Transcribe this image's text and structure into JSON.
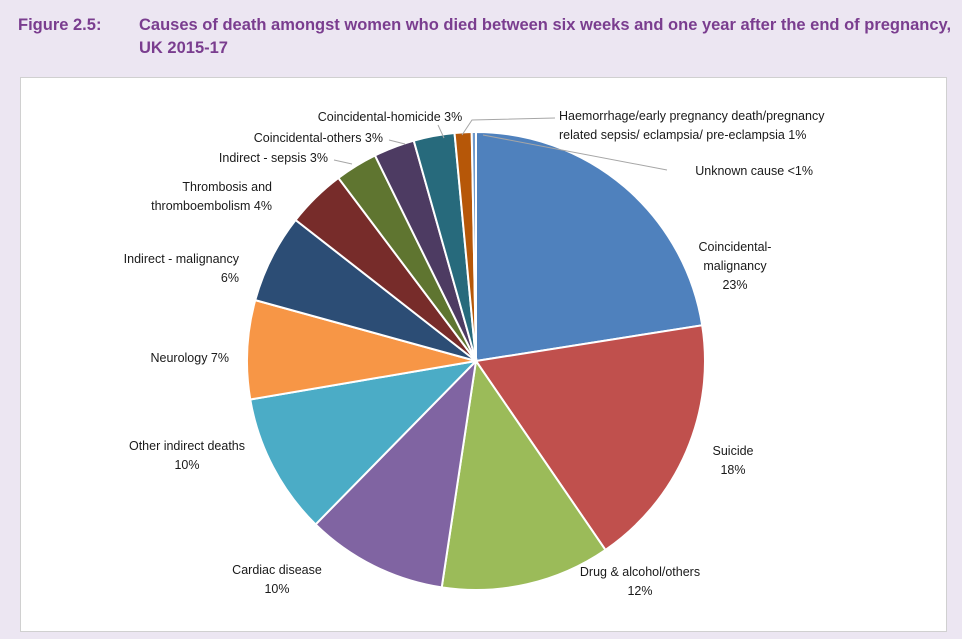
{
  "figure": {
    "number": "Figure 2.5:",
    "title": "Causes of death amongst women who died between six weeks and one year after the end of pregnancy, UK 2015-17"
  },
  "chart_data": {
    "type": "pie",
    "title": "Causes of death amongst women who died between six weeks and one year after the end of pregnancy, UK 2015-17",
    "unit": "%",
    "start": "12 o'clock, clockwise",
    "slices": [
      {
        "name": "Coincidental-malignancy",
        "value": 22.6,
        "label_lines": [
          "Coincidental-",
          "malignancy",
          "23%"
        ],
        "color": "#4f81bd"
      },
      {
        "name": "Suicide",
        "value": 18.0,
        "label_lines": [
          "Suicide",
          "18%"
        ],
        "color": "#c0504d"
      },
      {
        "name": "Drug & alcohol/others",
        "value": 12.0,
        "label_lines": [
          "Drug & alcohol/others",
          "12%"
        ],
        "color": "#9bbb59"
      },
      {
        "name": "Cardiac disease",
        "value": 10.0,
        "label_lines": [
          "Cardiac disease",
          "10%"
        ],
        "color": "#8064a2"
      },
      {
        "name": "Other indirect deaths",
        "value": 10.0,
        "label_lines": [
          "Other indirect deaths",
          "10%"
        ],
        "color": "#4bacc6"
      },
      {
        "name": "Neurology",
        "value": 7.0,
        "label_lines": [
          "Neurology  7%"
        ],
        "color": "#f79646"
      },
      {
        "name": "Indirect - malignancy",
        "value": 6.3,
        "label_lines": [
          "Indirect - malignancy",
          "6%"
        ],
        "color": "#2c4d75"
      },
      {
        "name": "Thrombosis and thromboembolism",
        "value": 4.2,
        "label_lines": [
          "Thrombosis and",
          "thromboembolism 4%"
        ],
        "color": "#772c2a"
      },
      {
        "name": "Indirect - sepsis",
        "value": 3.0,
        "label_lines": [
          "Indirect - sepsis 3%"
        ],
        "color": "#5f7530"
      },
      {
        "name": "Coincidental-others",
        "value": 2.9,
        "label_lines": [
          "Coincidental-others 3%"
        ],
        "color": "#4d3b62"
      },
      {
        "name": "Coincidental-homicide",
        "value": 2.9,
        "label_lines": [
          "Coincidental-homicide 3%"
        ],
        "color": "#276a7c"
      },
      {
        "name": "Haemorrhage/early pregnancy death/pregnancy related sepsis/ eclampsia/ pre-eclampsia",
        "value": 1.2,
        "label_lines": [
          "Haemorrhage/early pregnancy death/pregnancy",
          "related sepsis/ eclampsia/ pre-eclampsia 1%"
        ],
        "color": "#b65708"
      },
      {
        "name": "Unknown cause",
        "value": 0.3,
        "label_lines": [
          "Unknown cause <1%"
        ],
        "color": "#729aca"
      }
    ]
  }
}
